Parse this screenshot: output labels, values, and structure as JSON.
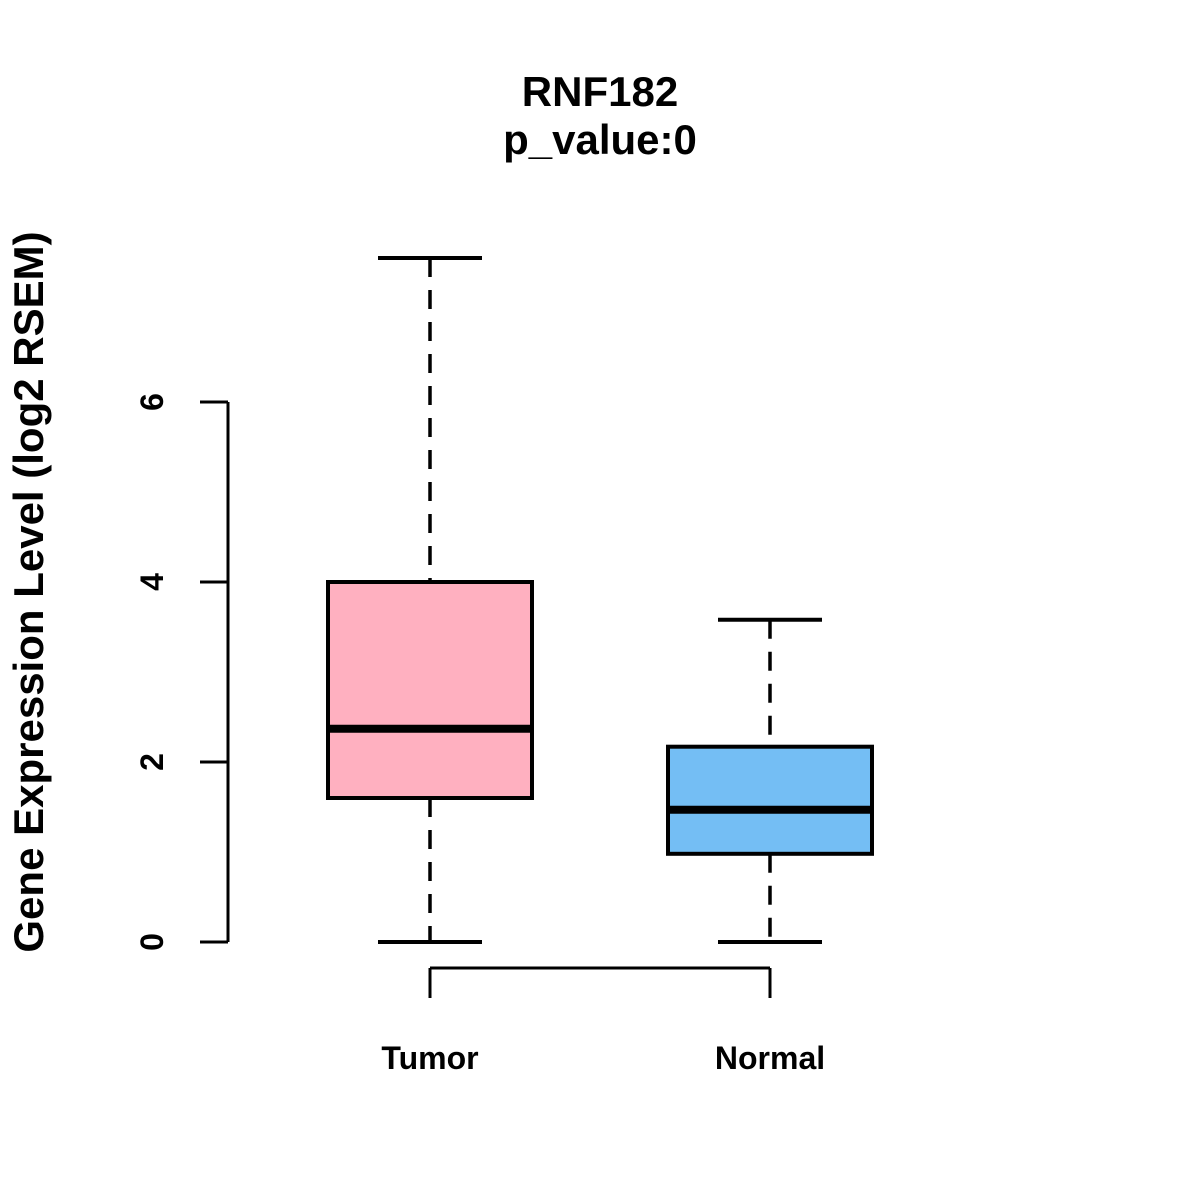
{
  "figure": {
    "background_color": "#FFFFFF",
    "text_color": "#000000"
  },
  "chart_data": {
    "type": "boxplot",
    "title": "RNF182",
    "subtitle": "p_value:0",
    "ylabel": "Gene Expression Level (log2 RSEM)",
    "xlabel": "",
    "categories": [
      "Tumor",
      "Normal"
    ],
    "ylim": [
      0,
      7.6
    ],
    "yticks": [
      0,
      2,
      4,
      6
    ],
    "grid": false,
    "legend": "none",
    "whisker_style": "dashed",
    "box_border_color": "#000000",
    "median_color": "#000000",
    "axis_color": "#000000",
    "groups": [
      {
        "name": "Tumor",
        "color": "#FFB0C0",
        "lower_whisker": 0,
        "q1": 1.6,
        "median": 2.37,
        "q3": 4.0,
        "upper_whisker": 7.6
      },
      {
        "name": "Normal",
        "color": "#74BEF4",
        "lower_whisker": 0,
        "q1": 0.98,
        "median": 1.47,
        "q3": 2.17,
        "upper_whisker": 3.58
      }
    ]
  }
}
